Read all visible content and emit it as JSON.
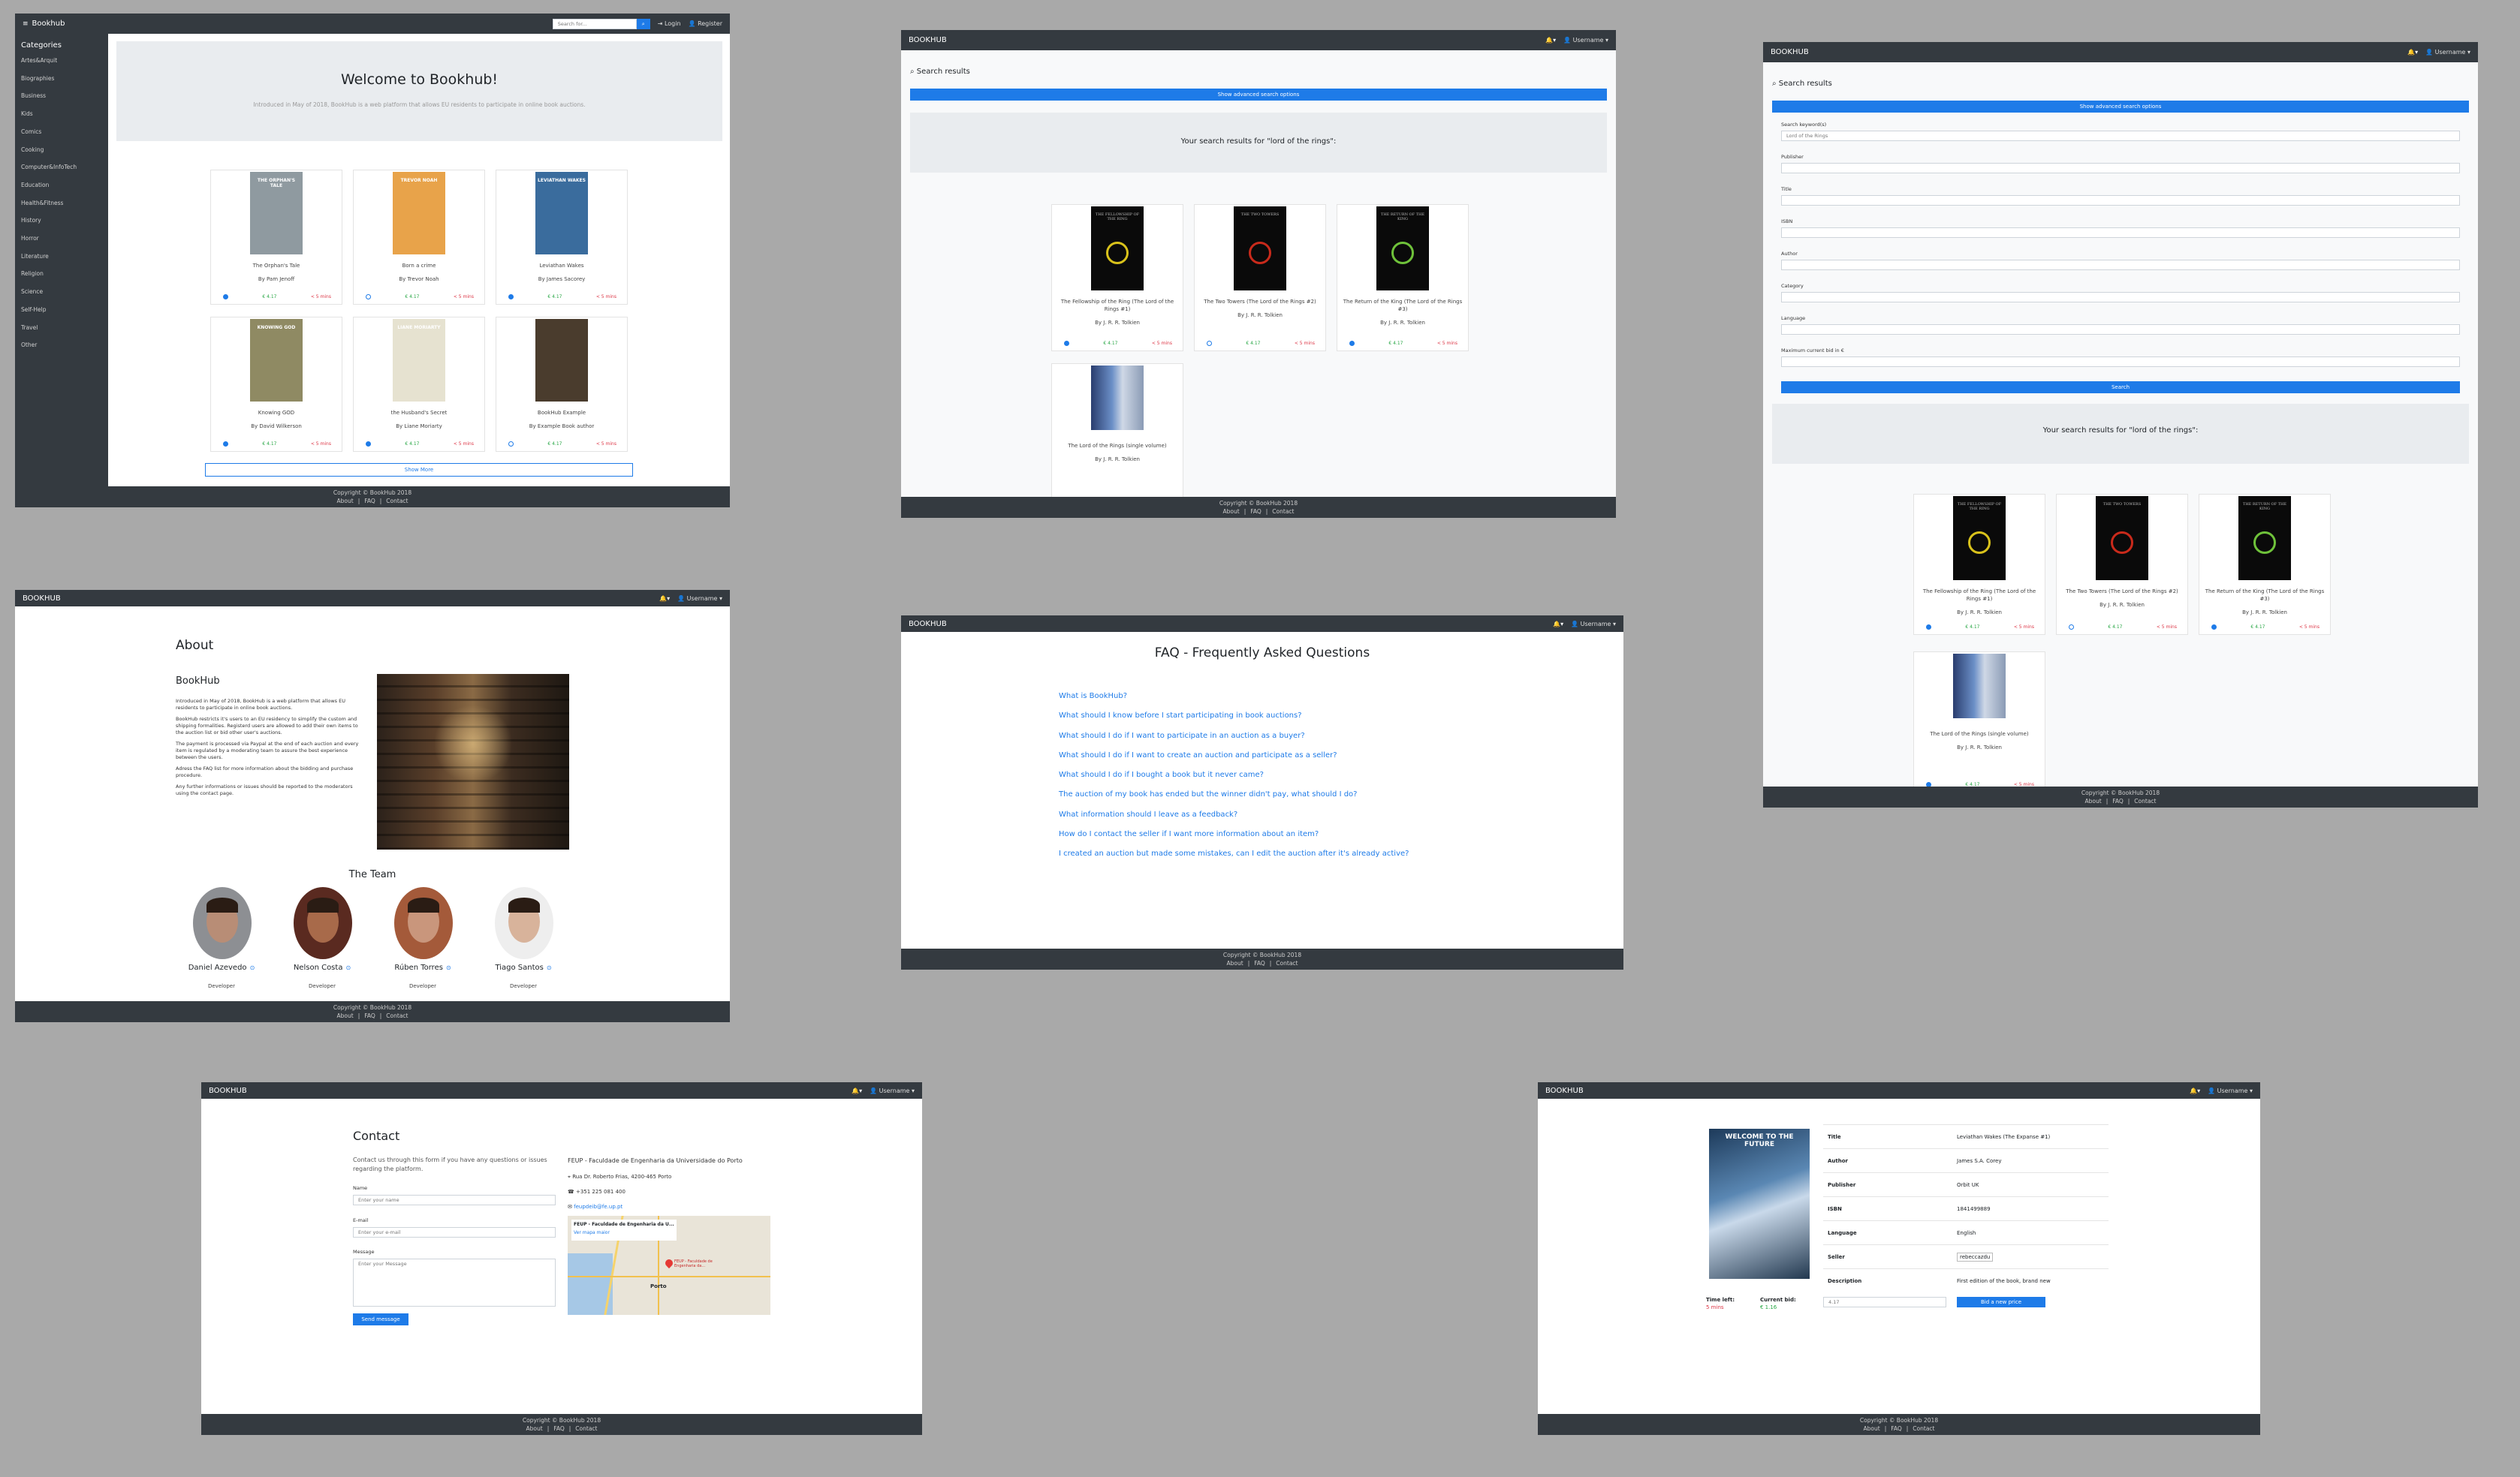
{
  "home": {
    "menu_icon": "hamburger-icon",
    "brand": "Bookhub",
    "search_placeholder": "Search for...",
    "login": "Login",
    "register": "Register",
    "categories_title": "Categories",
    "categories": [
      "Artes&Arquit",
      "Biographies",
      "Business",
      "Kids",
      "Comics",
      "Cooking",
      "Computer&InfoTech",
      "Education",
      "Health&Fitness",
      "History",
      "Horror",
      "Literature",
      "Religion",
      "Science",
      "Self-Help",
      "Travel",
      "Other"
    ],
    "welcome_title": "Welcome to Bookhub!",
    "welcome_text": "Introduced in May of 2018, BookHub is a web platform that allows EU residents to participate in online book auctions.",
    "books": [
      {
        "title": "The Orphan's Tale",
        "author": "By Pam Jenoff",
        "price": "€ 4.17",
        "time": "< 5 mins",
        "cover": "#8f9aa0",
        "cover_text": "THE ORPHAN'S TALE",
        "dot": "filled"
      },
      {
        "title": "Born a crime",
        "author": "By Trevor Noah",
        "price": "€ 4.17",
        "time": "< 5 mins",
        "cover": "#e8a34a",
        "cover_text": "TREVOR NOAH",
        "dot": "outline"
      },
      {
        "title": "Leviathan Wakes",
        "author": "By James Sacorey",
        "price": "€ 4.17",
        "time": "< 5 mins",
        "cover": "#3a6c9d",
        "cover_text": "LEVIATHAN WAKES",
        "dot": "filled"
      },
      {
        "title": "Knowing GOD",
        "author": "By David Wilkerson",
        "price": "€ 4.17",
        "time": "< 5 mins",
        "cover": "#8f8a63",
        "cover_text": "KNOWING GOD",
        "dot": "filled"
      },
      {
        "title": "the Husband's Secret",
        "author": "By Liane Moriarty",
        "price": "€ 4.17",
        "time": "< 5 mins",
        "cover": "#e6e2d0",
        "cover_text": "LIANE MORIARTY",
        "dot": "filled"
      },
      {
        "title": "BookHub Example",
        "author": "By Example Book author",
        "price": "€ 4.17",
        "time": "< 5 mins",
        "cover": "#4a3c2d",
        "cover_text": "",
        "dot": "outline"
      }
    ],
    "show_more": "Show More",
    "footer_copy": "Copyright © BookHub 2018",
    "footer_links": [
      "About",
      "FAQ",
      "Contact"
    ]
  },
  "nav": {
    "brand": "BOOKHUB",
    "bell_icon": "bell-icon",
    "user": "Username",
    "user_icon": "user-icon"
  },
  "search": {
    "heading": "Search results",
    "search_icon": "search-icon",
    "advanced": "Show advanced search options",
    "results_text": "Your search results for \"lord of the rings\":",
    "books": [
      {
        "title": "The Fellowship of the Ring (The Lord of the Rings #1)",
        "author": "By J. R. R. Tolkien",
        "price": "€ 4.17",
        "time": "< 5 mins",
        "ring": "#d9c21b",
        "cap": "THE FELLOWSHIP OF THE RING",
        "dot": "filled"
      },
      {
        "title": "The Two Towers (The Lord of the Rings #2)",
        "author": "By J. R. R. Tolkien",
        "price": "€ 4.17",
        "time": "< 5 mins",
        "ring": "#c92a1b",
        "cap": "THE TWO TOWERS",
        "dot": "outline"
      },
      {
        "title": "The Return of the King (The Lord of the Rings #3)",
        "author": "By J. R. R. Tolkien",
        "price": "€ 4.17",
        "time": "< 5 mins",
        "ring": "#6fc23a",
        "cap": "THE RETURN OF THE KING",
        "dot": "filled"
      },
      {
        "title": "The Lord of the Rings (single volume)",
        "author": "By J. R. R. Tolkien",
        "price": "€ 4.17",
        "time": "< 5 mins",
        "ring": "",
        "cap": "",
        "dot": "filled"
      }
    ]
  },
  "advanced": {
    "fields": [
      {
        "label": "Search keyword(s)",
        "value": "Lord of the Rings"
      },
      {
        "label": "Publisher",
        "value": ""
      },
      {
        "label": "Title",
        "value": ""
      },
      {
        "label": "ISBN",
        "value": ""
      },
      {
        "label": "Author",
        "value": ""
      },
      {
        "label": "Category",
        "value": ""
      },
      {
        "label": "Language",
        "value": ""
      },
      {
        "label": "Maximum current bid in €",
        "value": ""
      }
    ],
    "search_button": "Search"
  },
  "about": {
    "title": "About",
    "subtitle": "BookHub",
    "paragraphs": [
      "Introduced in May of 2018, BookHub is a web platform that allows EU residents to participate in online book auctions.",
      "BookHub restricts it's users to an EU residency to simplify the custom and shipping formalities. Registerd users are allowed to add their own items to the auction list or bid other user's auctions.",
      "The payment is processed via Paypal at the end of each auction and every item is regulated by a moderating team to assure the best experience between the users.",
      "Adress the FAQ list for more information about the bidding and purchase procedure.",
      "Any further informations or issues should be reported to the moderators using the contact page."
    ],
    "team_title": "The Team",
    "team": [
      {
        "name": "Daniel Azevedo",
        "role": "Developer",
        "skin": "#b88d76",
        "bg": "#8d8f93"
      },
      {
        "name": "Nelson Costa",
        "role": "Developer",
        "skin": "#a86a4a",
        "bg": "#5a2a20"
      },
      {
        "name": "Rúben Torres",
        "role": "Developer",
        "skin": "#c9967c",
        "bg": "#a45a3a"
      },
      {
        "name": "Tiago Santos",
        "role": "Developer",
        "skin": "#d8b39b",
        "bg": "#eeeeee"
      }
    ],
    "github_icon": "github-icon"
  },
  "faq": {
    "title": "FAQ - Frequently Asked Questions",
    "questions": [
      "What is BookHub?",
      "What should I know before I start participating in book auctions?",
      "What should I do if I want to participate in an auction as a buyer?",
      "What should I do if I want to create an auction and participate as a seller?",
      "What should I do if I bought a book but it never came?",
      "The auction of my book has ended but the winner didn't pay, what should I do?",
      "What information should I leave as a feedback?",
      "How do I contact the seller if I want more information about an item?",
      "I created an auction but made some mistakes, can I edit the auction after it's already active?"
    ]
  },
  "contact": {
    "title": "Contact",
    "intro": "Contact us through this form if you have any questions or issues regarding the platform.",
    "name_label": "Name",
    "name_ph": "Enter your name",
    "email_label": "E-mail",
    "email_ph": "Enter your e-mail",
    "message_label": "Message",
    "message_ph": "Enter your Message",
    "send": "Send message",
    "org": "FEUP - Faculdade de Engenharia da Universidade do Porto",
    "address": "Rua Dr. Roberto Frias, 4200-465 Porto",
    "phone": "+351 225 081 400",
    "email": "feupdeib@fe.up.pt",
    "map_label": "FEUP - Faculdade de Engenharia da U...",
    "map_sub": "Ver mapa maior",
    "map_pin": "FEUP - Faculdade de Engenharia da...",
    "map_city": "Porto",
    "icons": [
      "map-marker-icon",
      "phone-icon",
      "envelope-icon"
    ]
  },
  "detail": {
    "rows": [
      {
        "k": "Title",
        "v": "Leviathan Wakes (The Expanse #1)"
      },
      {
        "k": "Author",
        "v": "James S.A. Corey"
      },
      {
        "k": "Publisher",
        "v": "Orbit UK"
      },
      {
        "k": "ISBN",
        "v": "1841499889"
      },
      {
        "k": "Language",
        "v": "English"
      },
      {
        "k": "Seller",
        "v": "rebeccazdu"
      },
      {
        "k": "Description",
        "v": "First edition of the book, brand new"
      }
    ],
    "time_label": "Time left:",
    "time_value": "5 mins",
    "bid_label": "Current bid:",
    "bid_value": "€ 1.16",
    "bid_placeholder": "4.17",
    "bid_button": "Bid a new price",
    "cover_text": "WELCOME TO THE FUTURE"
  }
}
